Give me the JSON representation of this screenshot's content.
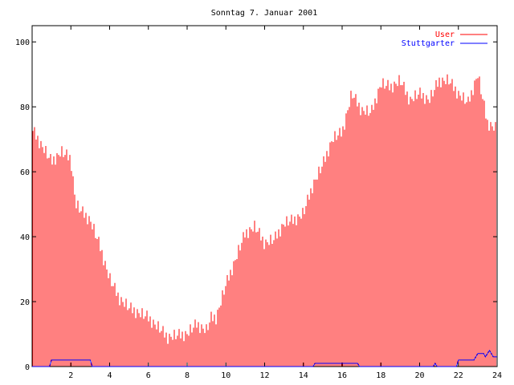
{
  "chart_data": {
    "type": "bar",
    "title": "Sonntag 7. Januar 2001",
    "xlabel": "",
    "ylabel": "",
    "xlim": [
      0,
      24
    ],
    "ylim": [
      0,
      105
    ],
    "x_ticks": [
      "2",
      "4",
      "6",
      "8",
      "10",
      "12",
      "14",
      "16",
      "18",
      "20",
      "22",
      "24"
    ],
    "y_ticks": [
      "0",
      "20",
      "40",
      "60",
      "80",
      "100"
    ],
    "legend_position": "top-right",
    "series": [
      {
        "name": "User",
        "color": "#ff0000",
        "style": "impulses",
        "points": [
          [
            0.0,
            73
          ],
          [
            0.5,
            68
          ],
          [
            1.0,
            63
          ],
          [
            1.5,
            66
          ],
          [
            2.0,
            64
          ],
          [
            2.25,
            50
          ],
          [
            2.5,
            48
          ],
          [
            3.0,
            45
          ],
          [
            3.5,
            37
          ],
          [
            4.0,
            27
          ],
          [
            4.5,
            21
          ],
          [
            5.0,
            18
          ],
          [
            6.0,
            15
          ],
          [
            7.0,
            9
          ],
          [
            8.0,
            10
          ],
          [
            8.5,
            13
          ],
          [
            9.0,
            11
          ],
          [
            9.25,
            15
          ],
          [
            9.5,
            15
          ],
          [
            10.0,
            25
          ],
          [
            10.5,
            33
          ],
          [
            11.0,
            41
          ],
          [
            11.5,
            43
          ],
          [
            12.0,
            38
          ],
          [
            12.5,
            39
          ],
          [
            13.0,
            44
          ],
          [
            13.5,
            45
          ],
          [
            14.0,
            47
          ],
          [
            14.5,
            56
          ],
          [
            15.0,
            62
          ],
          [
            15.5,
            70
          ],
          [
            16.0,
            72
          ],
          [
            16.5,
            84
          ],
          [
            17.0,
            79
          ],
          [
            17.5,
            78
          ],
          [
            18.0,
            87
          ],
          [
            18.5,
            86
          ],
          [
            19.0,
            88
          ],
          [
            19.5,
            82
          ],
          [
            20.0,
            84
          ],
          [
            20.5,
            82
          ],
          [
            21.0,
            88
          ],
          [
            21.5,
            88
          ],
          [
            22.0,
            84
          ],
          [
            22.5,
            81
          ],
          [
            23.0,
            90
          ],
          [
            23.5,
            75
          ],
          [
            24.0,
            73
          ]
        ]
      },
      {
        "name": "Stuttgarter",
        "color": "#0000ff",
        "style": "line",
        "points": [
          [
            0.0,
            0
          ],
          [
            0.9,
            0
          ],
          [
            1.0,
            2
          ],
          [
            3.0,
            2
          ],
          [
            3.1,
            0
          ],
          [
            14.5,
            0
          ],
          [
            14.6,
            1
          ],
          [
            16.8,
            1
          ],
          [
            16.9,
            0
          ],
          [
            20.7,
            0
          ],
          [
            20.8,
            1
          ],
          [
            20.9,
            0
          ],
          [
            21.9,
            0
          ],
          [
            22.0,
            2
          ],
          [
            22.8,
            2
          ],
          [
            23.0,
            4
          ],
          [
            23.3,
            4
          ],
          [
            23.4,
            3
          ],
          [
            23.6,
            5
          ],
          [
            23.8,
            3
          ],
          [
            24.0,
            3
          ]
        ]
      }
    ]
  }
}
